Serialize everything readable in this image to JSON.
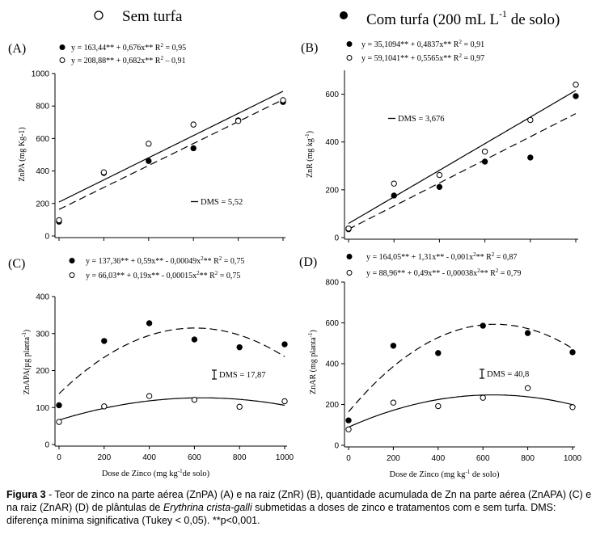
{
  "legend": {
    "sem": "Sem turfa",
    "com": "Com turfa (200 mL L",
    "com_sup": "-1",
    "com_end": " de solo)"
  },
  "axes": {
    "xlabel_a": "Dose de Zinco (mg kg",
    "xlabel_sup": "-1",
    "xlabel_b": "de solo)",
    "xlabel_b2": " de solo)"
  },
  "caption": {
    "label": "Figura 3",
    "text_1": " - Teor de zinco na parte aérea (ZnPA) (A) e na raiz (ZnR) (B), quantidade acumulada de Zn na parte aérea (ZnAPA) (C) e na raiz (ZnAR) (D) de plântulas de ",
    "species": "Erythrina crista-galli",
    "text_2": " submetidas a doses de zinco e tratamentos com e sem turfa. DMS: diferença mínima significativa (Tukey < 0,05). **p<0,001."
  },
  "chart_data": [
    {
      "id": "A",
      "type": "scatter",
      "panel_label": "(A)",
      "ylabel": "ZnPA (mg Kg-1)",
      "ylabel_sup": "",
      "ylim": [
        0,
        1000
      ],
      "yticks": [
        0,
        200,
        400,
        600,
        800,
        1000
      ],
      "x": [
        0,
        200,
        400,
        600,
        800,
        1000
      ],
      "series": [
        {
          "name": "Com turfa",
          "marker": "filled",
          "line": "dashed",
          "values": [
            88,
            388,
            462,
            540,
            712,
            825
          ],
          "eq_a": "y = 163,44** + 0,676x**",
          "eq_r2": "0,95",
          "fit": {
            "type": "linear",
            "coef": [
              163.44,
              0.676
            ]
          }
        },
        {
          "name": "Sem turfa",
          "marker": "open",
          "line": "solid",
          "values": [
            97,
            392,
            568,
            686,
            708,
            836
          ],
          "eq_a": "y = 208,88** + 0,682x**",
          "eq_r2": "0,91",
          "fit": {
            "type": "linear",
            "coef": [
              208.88,
              0.682
            ]
          }
        }
      ],
      "dms": "DMS = 5,52"
    },
    {
      "id": "B",
      "type": "scatter",
      "panel_label": "(B)",
      "ylabel": "ZnR (mg kg",
      "ylabel_sup": "-1",
      "ylim": [
        0,
        700
      ],
      "yticks": [
        0,
        200,
        400,
        600
      ],
      "x": [
        0,
        200,
        400,
        600,
        800,
        1000
      ],
      "series": [
        {
          "name": "Com turfa",
          "marker": "filled",
          "line": "dashed",
          "values": [
            35,
            176,
            212,
            318,
            335,
            592
          ],
          "eq_a": "y = 35,1094** + 0,4837x**",
          "eq_r2": "0,91",
          "fit": {
            "type": "linear",
            "coef": [
              35.1094,
              0.4837
            ]
          }
        },
        {
          "name": "Sem turfa",
          "marker": "open",
          "line": "solid",
          "values": [
            38,
            226,
            262,
            360,
            492,
            640
          ],
          "eq_a": "y = 59,1041** + 0,5565x**",
          "eq_r2": "0,97",
          "fit": {
            "type": "linear",
            "coef": [
              59.1041,
              0.5565
            ]
          }
        }
      ],
      "dms": "DMS = 3,676"
    },
    {
      "id": "C",
      "type": "scatter",
      "panel_label": "(C)",
      "ylabel": "ZnAPA(µg planta",
      "ylabel_sup": "-1",
      "ylim": [
        0,
        400
      ],
      "yticks": [
        0,
        100,
        200,
        300,
        400
      ],
      "x": [
        0,
        200,
        400,
        600,
        800,
        1000
      ],
      "series": [
        {
          "name": "Com turfa",
          "marker": "filled",
          "line": "dashed",
          "values": [
            106,
            280,
            328,
            284,
            263,
            271
          ],
          "eq_a": "y = 137,36** + 0,59x** - 0,00049x",
          "eq_b": "** R",
          "eq_r2": "0,75",
          "fit": {
            "type": "quadratic",
            "coef": [
              137.36,
              0.59,
              -0.00049
            ]
          }
        },
        {
          "name": "Sem turfa",
          "marker": "open",
          "line": "solid",
          "values": [
            61,
            103,
            131,
            121,
            102,
            117
          ],
          "eq_a": "y = 66,03** + 0,19x** - 0,00015x",
          "eq_b": "** R",
          "eq_r2": "0,75",
          "fit": {
            "type": "quadratic",
            "coef": [
              66.03,
              0.19,
              -0.00015
            ]
          }
        }
      ],
      "dms": "DMS = 17,87"
    },
    {
      "id": "D",
      "type": "scatter",
      "panel_label": "(D)",
      "ylabel": "ZnAR (mg planta",
      "ylabel_sup": "-1",
      "ylim": [
        0,
        800
      ],
      "yticks": [
        0,
        200,
        400,
        600,
        800
      ],
      "x": [
        0,
        200,
        400,
        600,
        800,
        1000
      ],
      "series": [
        {
          "name": "Com turfa",
          "marker": "filled",
          "line": "dashed",
          "values": [
            122,
            488,
            452,
            586,
            550,
            456
          ],
          "eq_a": "y = 164,05** + 1,31x** - 0,001x",
          "eq_b": "** R",
          "eq_r2": "0,87",
          "fit": {
            "type": "quadratic",
            "coef": [
              164.05,
              1.31,
              -0.001
            ]
          }
        },
        {
          "name": "Sem turfa",
          "marker": "open",
          "line": "solid",
          "values": [
            78,
            209,
            192,
            233,
            280,
            187
          ],
          "eq_a": "y = 88,96** + 0,49x** - 0,00038x",
          "eq_b": "** R",
          "eq_r2": "0,79",
          "fit": {
            "type": "quadratic",
            "coef": [
              88.96,
              0.49,
              -0.00038
            ]
          }
        }
      ],
      "dms": "DMS = 40,8"
    }
  ],
  "xticks": [
    0,
    200,
    400,
    600,
    800,
    1000
  ]
}
